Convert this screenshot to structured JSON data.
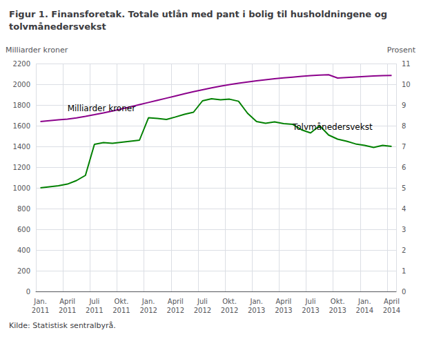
{
  "chart_data": {
    "type": "line",
    "title": "Figur 1. Finansforetak. Totale utlån med pant i bolig til husholdningene og\ntolvmånedersvekst",
    "y_label": "Milliarder kroner",
    "y2_label": "Prosent",
    "source": "Kilde: Statistisk sentralbyrå.",
    "categories": [
      "Jan.\n2011",
      null,
      null,
      "April\n2011",
      null,
      null,
      "Juli\n2011",
      null,
      null,
      "Okt.\n2011",
      null,
      null,
      "Jan.\n2012",
      null,
      null,
      "April\n2012",
      null,
      null,
      "Juli\n2012",
      null,
      null,
      "Okt.\n2012",
      null,
      null,
      "Jan.\n2013",
      null,
      null,
      "April\n2013",
      null,
      null,
      "Juli\n2013",
      null,
      null,
      "Okt.\n2013",
      null,
      null,
      "Jan.\n2014",
      null,
      null,
      "April\n2014"
    ],
    "series": [
      {
        "color": "#8B008B",
        "values": [
          1640,
          1648,
          1656,
          1664,
          1675,
          1690,
          1706,
          1723,
          1742,
          1762,
          1782,
          1803,
          1824,
          1845,
          1866,
          1887,
          1908,
          1928,
          1947,
          1965,
          1982,
          1997,
          2010,
          2022,
          2033,
          2043,
          2053,
          2061,
          2069,
          2077,
          2083,
          2088,
          2092,
          2060,
          2065,
          2070,
          2075,
          2080,
          2083,
          2085
        ]
      },
      {
        "color": "#008000",
        "axis": "y2",
        "values": [
          5.0,
          5.05,
          5.1,
          5.18,
          5.35,
          5.6,
          7.1,
          7.18,
          7.15,
          7.2,
          7.25,
          7.3,
          8.38,
          8.35,
          8.3,
          8.42,
          8.55,
          8.65,
          9.2,
          9.3,
          9.25,
          9.28,
          9.18,
          8.6,
          8.2,
          8.12,
          8.18,
          8.1,
          8.07,
          7.8,
          7.65,
          8.0,
          7.55,
          7.35,
          7.25,
          7.12,
          7.05,
          6.95,
          7.05,
          7.0
        ]
      }
    ],
    "ylim": [
      0,
      2200
    ],
    "yticks": [
      0,
      200,
      400,
      600,
      800,
      1000,
      1200,
      1400,
      1600,
      1800,
      2000,
      2200
    ],
    "y2lim": [
      0,
      11
    ],
    "y2ticks": [
      0,
      1,
      2,
      3,
      4,
      5,
      6,
      7,
      8,
      9,
      10,
      11
    ],
    "grid": true,
    "annotations": [
      {
        "text": "Milliarder kroner",
        "x": 3,
        "y": 1730
      },
      {
        "text": "Tolvmånedersvekst",
        "x": 28,
        "y": 7.75,
        "axis": "y2"
      }
    ]
  }
}
